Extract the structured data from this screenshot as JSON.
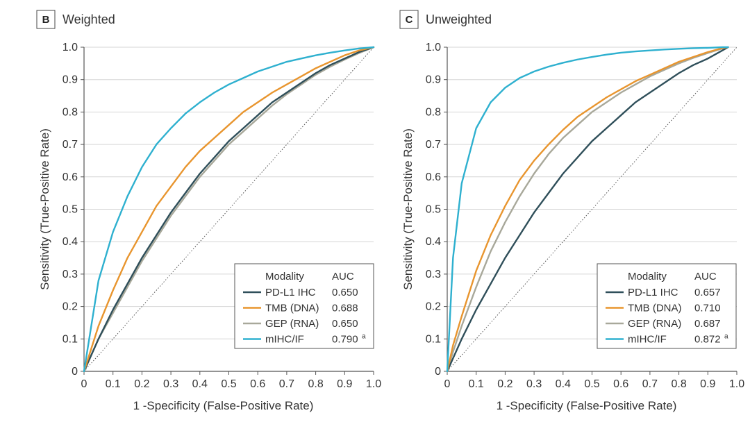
{
  "chart_data": [
    {
      "type": "line",
      "panel_label": "B",
      "title": "Weighted",
      "xlabel": "1 -Specificity (False-Positive Rate)",
      "ylabel": "Sensitivity (True-Positive Rate)",
      "xlim": [
        0,
        1
      ],
      "ylim": [
        0,
        1
      ],
      "xticks": [
        "0",
        "0.1",
        "0.2",
        "0.3",
        "0.4",
        "0.5",
        "0.6",
        "0.7",
        "0.8",
        "0.9",
        "1.0"
      ],
      "yticks": [
        "0",
        "0.1",
        "0.2",
        "0.3",
        "0.4",
        "0.5",
        "0.6",
        "0.7",
        "0.8",
        "0.9",
        "1.0"
      ],
      "grid": "horizontal",
      "legend_position": "bottom-right",
      "legend_header": [
        "Modality",
        "AUC"
      ],
      "reference_line": "diagonal-dotted",
      "x": [
        0,
        0.05,
        0.1,
        0.15,
        0.2,
        0.25,
        0.3,
        0.35,
        0.4,
        0.45,
        0.5,
        0.55,
        0.6,
        0.65,
        0.7,
        0.75,
        0.8,
        0.85,
        0.9,
        0.95,
        1.0
      ],
      "series": [
        {
          "name": "PD-L1 IHC",
          "auc": "0.650",
          "color": "#2f4f5a",
          "values": [
            0,
            0.1,
            0.19,
            0.27,
            0.35,
            0.42,
            0.49,
            0.55,
            0.61,
            0.66,
            0.71,
            0.75,
            0.79,
            0.83,
            0.86,
            0.89,
            0.92,
            0.945,
            0.965,
            0.985,
            1.0
          ]
        },
        {
          "name": "TMB (DNA)",
          "auc": "0.688",
          "color": "#e8952e",
          "values": [
            0,
            0.14,
            0.25,
            0.35,
            0.43,
            0.51,
            0.57,
            0.63,
            0.68,
            0.72,
            0.76,
            0.8,
            0.83,
            0.86,
            0.885,
            0.91,
            0.935,
            0.955,
            0.975,
            0.99,
            1.0
          ]
        },
        {
          "name": "GEP (RNA)",
          "auc": "0.650",
          "color": "#a8a89a",
          "values": [
            0,
            0.1,
            0.18,
            0.26,
            0.34,
            0.41,
            0.48,
            0.54,
            0.6,
            0.65,
            0.7,
            0.74,
            0.78,
            0.82,
            0.855,
            0.885,
            0.915,
            0.94,
            0.962,
            0.982,
            1.0
          ]
        },
        {
          "name": "mIHC/IF",
          "auc": "0.790",
          "auc_sup": "a",
          "color": "#2eb0cf",
          "values": [
            0,
            0.28,
            0.43,
            0.54,
            0.63,
            0.7,
            0.75,
            0.795,
            0.83,
            0.86,
            0.885,
            0.905,
            0.925,
            0.94,
            0.955,
            0.965,
            0.975,
            0.983,
            0.99,
            0.996,
            1.0
          ]
        }
      ]
    },
    {
      "type": "line",
      "panel_label": "C",
      "title": "Unweighted",
      "xlabel": "1 -Specificity (False-Positive Rate)",
      "ylabel": "Sensitivity (True-Positive Rate)",
      "xlim": [
        0,
        1
      ],
      "ylim": [
        0,
        1
      ],
      "xticks": [
        "0",
        "0.1",
        "0.2",
        "0.3",
        "0.4",
        "0.5",
        "0.6",
        "0.7",
        "0.8",
        "0.9",
        "1.0"
      ],
      "yticks": [
        "0",
        "0.1",
        "0.2",
        "0.3",
        "0.4",
        "0.5",
        "0.6",
        "0.7",
        "0.8",
        "0.9",
        "1.0"
      ],
      "grid": "horizontal",
      "legend_position": "bottom-right",
      "legend_header": [
        "Modality",
        "AUC"
      ],
      "reference_line": "diagonal-dotted",
      "x": [
        0,
        0.02,
        0.05,
        0.1,
        0.15,
        0.2,
        0.25,
        0.3,
        0.35,
        0.4,
        0.45,
        0.5,
        0.55,
        0.6,
        0.65,
        0.7,
        0.75,
        0.8,
        0.85,
        0.9,
        0.95,
        0.97
      ],
      "series": [
        {
          "name": "PD-L1 IHC",
          "auc": "0.657",
          "color": "#2f4f5a",
          "values": [
            0,
            0.04,
            0.1,
            0.19,
            0.27,
            0.35,
            0.42,
            0.49,
            0.55,
            0.61,
            0.66,
            0.71,
            0.75,
            0.79,
            0.83,
            0.86,
            0.89,
            0.92,
            0.945,
            0.965,
            0.99,
            1.0
          ]
        },
        {
          "name": "TMB (DNA)",
          "auc": "0.710",
          "color": "#e8952e",
          "values": [
            0,
            0.08,
            0.17,
            0.31,
            0.42,
            0.51,
            0.59,
            0.65,
            0.7,
            0.745,
            0.785,
            0.815,
            0.845,
            0.87,
            0.895,
            0.915,
            0.935,
            0.955,
            0.97,
            0.985,
            0.997,
            1.0
          ]
        },
        {
          "name": "GEP (RNA)",
          "auc": "0.687",
          "color": "#a8a89a",
          "values": [
            0,
            0.06,
            0.14,
            0.26,
            0.37,
            0.46,
            0.54,
            0.61,
            0.67,
            0.72,
            0.76,
            0.8,
            0.83,
            0.86,
            0.885,
            0.91,
            0.93,
            0.95,
            0.967,
            0.982,
            0.996,
            1.0
          ]
        },
        {
          "name": "mIHC/IF",
          "auc": "0.872",
          "auc_sup": "a",
          "color": "#2eb0cf",
          "values": [
            0,
            0.35,
            0.58,
            0.75,
            0.83,
            0.875,
            0.905,
            0.925,
            0.94,
            0.952,
            0.962,
            0.97,
            0.977,
            0.983,
            0.987,
            0.99,
            0.993,
            0.995,
            0.997,
            0.998,
            1.0,
            1.0
          ]
        }
      ]
    }
  ]
}
